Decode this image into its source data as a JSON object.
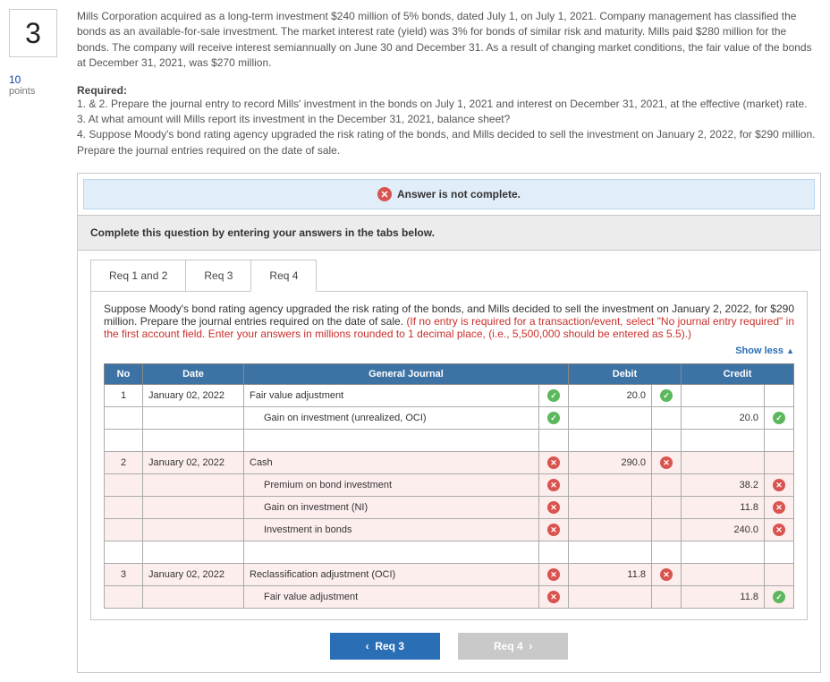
{
  "left": {
    "question_number": "3",
    "points_value": "10",
    "points_label": "points"
  },
  "problem": {
    "text": "Mills Corporation acquired as a long-term investment $240 million of 5% bonds, dated July 1, on July 1, 2021. Company management has classified the bonds as an available-for-sale investment. The market interest rate (yield) was 3% for bonds of similar risk and maturity. Mills paid $280 million for the bonds. The company will receive interest semiannually on June 30 and December 31. As a result of changing market conditions, the fair value of the bonds at December 31, 2021, was $270 million."
  },
  "required": {
    "heading": "Required:",
    "item1": "1. & 2. Prepare the journal entry to record Mills' investment in the bonds on July 1, 2021 and interest on December 31, 2021, at the effective (market) rate.",
    "item3": "3. At what amount will Mills report its investment in the December 31, 2021, balance sheet?",
    "item4": "4. Suppose Moody's bond rating agency upgraded the risk rating of the bonds, and Mills decided to sell the investment on January 2, 2022, for $290 million. Prepare the journal entries required on the date of sale."
  },
  "alert": {
    "text": "Answer is not complete."
  },
  "instr": {
    "text": "Complete this question by entering your answers in the tabs below."
  },
  "tabs": {
    "t1": "Req 1 and 2",
    "t2": "Req 3",
    "t3": "Req 4"
  },
  "tab_body": {
    "lead": "Suppose Moody's bond rating agency upgraded the risk rating of the bonds, and Mills decided to sell the investment on January 2, 2022, for $290 million. Prepare the journal entries required on the date of sale. ",
    "hint": "(If no entry is required for a transaction/event, select \"No journal entry required\" in the first account field. Enter your answers in millions rounded to 1 decimal place, (i.e., 5,500,000 should be entered as 5.5).)",
    "show_less": "Show less"
  },
  "table": {
    "headers": {
      "no": "No",
      "date": "Date",
      "gj": "General Journal",
      "debit": "Debit",
      "credit": "Credit"
    },
    "r1": {
      "no": "1",
      "date": "January 02, 2022",
      "acct": "Fair value adjustment",
      "debit": "20.0",
      "ok_row": true,
      "ok_amt": true
    },
    "r2": {
      "acct": "Gain on investment (unrealized, OCI)",
      "credit": "20.0",
      "ok_row": true,
      "ok_amt": true
    },
    "r3": {
      "no": "2",
      "date": "January 02, 2022",
      "acct": "Cash",
      "debit": "290.0",
      "ok_row": false,
      "ok_amt": false
    },
    "r4": {
      "acct": "Premium on bond investment",
      "credit": "38.2",
      "ok_row": false,
      "ok_amt": false
    },
    "r5": {
      "acct": "Gain on investment (NI)",
      "credit": "11.8",
      "ok_row": false,
      "ok_amt": false
    },
    "r6": {
      "acct": "Investment in bonds",
      "credit": "240.0",
      "ok_row": false,
      "ok_amt": false
    },
    "r7": {
      "no": "3",
      "date": "January 02, 2022",
      "acct": "Reclassification adjustment (OCI)",
      "debit": "11.8",
      "ok_row": false,
      "ok_amt": false
    },
    "r8": {
      "acct": "Fair value adjustment",
      "credit": "11.8",
      "ok_row": false,
      "ok_amt": true
    }
  },
  "nav": {
    "prev": "Req 3",
    "next": "Req 4"
  },
  "colors": {
    "header_bg": "#3d72a4",
    "alert_bg": "#e1edf9",
    "ok": "#5cb85c",
    "bad": "#d9534f",
    "link": "#2a6fb5"
  }
}
